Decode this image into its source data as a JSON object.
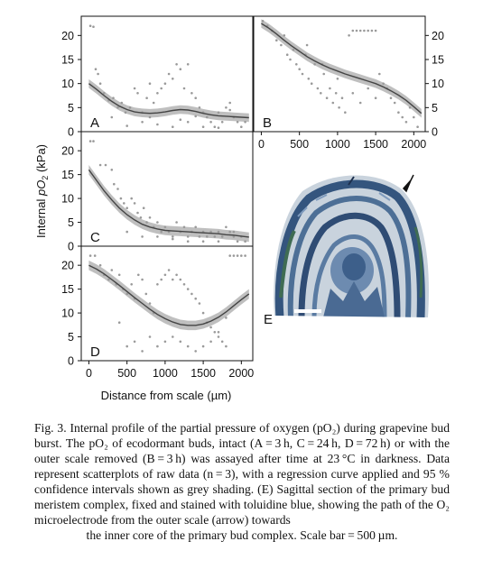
{
  "figure": {
    "y_axis_title_pre": "Internal ",
    "y_axis_title_var": "pO",
    "y_axis_title_sub": "2",
    "y_axis_title_post": " (kPa)",
    "x_axis_title": "Distance from scale (µm)",
    "panel_e_label": "E"
  },
  "caption": {
    "text": "Fig. 3. Internal profile of the partial pressure of oxygen (pO₂) during grapevine bud burst. The pO₂ of ecodormant buds, intact (A = 3 h, C = 24 h, D = 72 h) or with the outer scale removed (B = 3 h) was assayed after time at 23 °C in darkness. Data represent scatterplots of raw data (n = 3), with a regression curve applied and 95 % confidence intervals shown as grey shading. (E) Sagittal section of the primary bud meristem complex, fixed and stained with toluidine blue, showing the path of the O₂ microelectrode from the outer scale (arrow) towards",
    "last_line": "the inner core of the primary bud complex. Scale bar = 500 µm."
  },
  "chart_data": [
    {
      "type": "scatter",
      "panel": "A",
      "xlim": [
        -100,
        2150
      ],
      "ylim": [
        0,
        24
      ],
      "yticks": [
        "0",
        "5",
        "10",
        "15",
        "20"
      ],
      "ytick_values": [
        0,
        5,
        10,
        15,
        20
      ],
      "ytick_side": "left",
      "xticks": [],
      "fit": {
        "x": [
          0,
          100,
          200,
          300,
          400,
          500,
          600,
          700,
          800,
          900,
          1000,
          1100,
          1200,
          1300,
          1400,
          1500,
          1600,
          1700,
          1800,
          1900,
          2000,
          2100
        ],
        "y": [
          10,
          8.8,
          7.5,
          6.3,
          5.3,
          4.6,
          4.1,
          3.9,
          3.8,
          3.9,
          4.1,
          4.4,
          4.6,
          4.5,
          4.2,
          3.8,
          3.5,
          3.3,
          3.2,
          3.1,
          3.0,
          2.9
        ]
      },
      "ci_halfwidth": 0.9,
      "points": [
        [
          20,
          22
        ],
        [
          60,
          21.8
        ],
        [
          90,
          13
        ],
        [
          120,
          12
        ],
        [
          150,
          10
        ],
        [
          200,
          8
        ],
        [
          260,
          6.5
        ],
        [
          320,
          7
        ],
        [
          380,
          5
        ],
        [
          430,
          6
        ],
        [
          480,
          4
        ],
        [
          540,
          5
        ],
        [
          600,
          9
        ],
        [
          640,
          8
        ],
        [
          700,
          4
        ],
        [
          760,
          7
        ],
        [
          800,
          10
        ],
        [
          850,
          6
        ],
        [
          900,
          8
        ],
        [
          950,
          9
        ],
        [
          1000,
          10
        ],
        [
          1050,
          12
        ],
        [
          1100,
          11
        ],
        [
          1150,
          14
        ],
        [
          1200,
          13
        ],
        [
          1250,
          9
        ],
        [
          1300,
          14
        ],
        [
          1350,
          8
        ],
        [
          1400,
          7
        ],
        [
          1450,
          5
        ],
        [
          1500,
          4
        ],
        [
          1550,
          3
        ],
        [
          1600,
          2
        ],
        [
          1650,
          1
        ],
        [
          1700,
          0.8
        ],
        [
          1750,
          2
        ],
        [
          1800,
          5
        ],
        [
          1850,
          6
        ],
        [
          1900,
          3
        ],
        [
          1950,
          2
        ],
        [
          2000,
          1
        ],
        [
          2050,
          2
        ],
        [
          500,
          1.2
        ],
        [
          700,
          2
        ],
        [
          900,
          1.5
        ],
        [
          1100,
          1
        ],
        [
          1300,
          2
        ],
        [
          1500,
          1
        ],
        [
          300,
          3
        ],
        [
          1200,
          2.5
        ],
        [
          800,
          3
        ],
        [
          1400,
          3.2
        ],
        [
          1700,
          4
        ],
        [
          1850,
          4.5
        ]
      ]
    },
    {
      "type": "scatter",
      "panel": "B",
      "xlim": [
        -100,
        2150
      ],
      "ylim": [
        0,
        24
      ],
      "yticks": [
        "0",
        "5",
        "10",
        "15",
        "20"
      ],
      "ytick_values": [
        0,
        5,
        10,
        15,
        20
      ],
      "ytick_side": "right",
      "xticks": [
        "0",
        "500",
        "1000",
        "1500",
        "2000"
      ],
      "xtick_values": [
        0,
        500,
        1000,
        1500,
        2000
      ],
      "fit": {
        "x": [
          0,
          100,
          200,
          300,
          400,
          500,
          600,
          700,
          800,
          900,
          1000,
          1100,
          1200,
          1300,
          1400,
          1500,
          1600,
          1700,
          1800,
          1900,
          2000,
          2100
        ],
        "y": [
          22.5,
          21.5,
          20.3,
          19.0,
          17.8,
          16.7,
          15.6,
          14.7,
          13.9,
          13.2,
          12.6,
          12.0,
          11.5,
          11.0,
          10.5,
          10.0,
          9.3,
          8.5,
          7.6,
          6.5,
          5.2,
          3.8
        ]
      },
      "ci_halfwidth": 0.9,
      "points": [
        [
          20,
          23
        ],
        [
          80,
          22
        ],
        [
          140,
          21
        ],
        [
          200,
          19
        ],
        [
          260,
          18
        ],
        [
          300,
          20
        ],
        [
          340,
          16
        ],
        [
          380,
          15
        ],
        [
          420,
          17
        ],
        [
          460,
          14
        ],
        [
          500,
          13
        ],
        [
          540,
          12
        ],
        [
          580,
          16
        ],
        [
          620,
          11
        ],
        [
          660,
          10
        ],
        [
          700,
          14
        ],
        [
          740,
          9
        ],
        [
          780,
          8
        ],
        [
          820,
          12
        ],
        [
          860,
          7
        ],
        [
          900,
          9
        ],
        [
          940,
          6
        ],
        [
          980,
          8
        ],
        [
          1020,
          5
        ],
        [
          1060,
          7
        ],
        [
          1100,
          4
        ],
        [
          1150,
          20
        ],
        [
          1200,
          21
        ],
        [
          1250,
          21
        ],
        [
          1300,
          21
        ],
        [
          1350,
          21
        ],
        [
          1400,
          21
        ],
        [
          1450,
          21
        ],
        [
          1500,
          21
        ],
        [
          1550,
          12
        ],
        [
          1600,
          10
        ],
        [
          1650,
          9
        ],
        [
          1700,
          7
        ],
        [
          1750,
          6
        ],
        [
          1800,
          4
        ],
        [
          1850,
          3
        ],
        [
          1900,
          2
        ],
        [
          1950,
          5
        ],
        [
          2000,
          3
        ],
        [
          2050,
          1
        ],
        [
          1200,
          8
        ],
        [
          1300,
          6
        ],
        [
          1400,
          9
        ],
        [
          1500,
          7
        ],
        [
          1000,
          11
        ],
        [
          800,
          14
        ],
        [
          600,
          18
        ]
      ]
    },
    {
      "type": "scatter",
      "panel": "C",
      "xlim": [
        -100,
        2150
      ],
      "ylim": [
        0,
        24
      ],
      "yticks": [
        "0",
        "5",
        "10",
        "15",
        "20"
      ],
      "ytick_values": [
        0,
        5,
        10,
        15,
        20
      ],
      "ytick_side": "left",
      "xticks": [],
      "fit": {
        "x": [
          0,
          100,
          200,
          300,
          400,
          500,
          600,
          700,
          800,
          900,
          1000,
          1100,
          1200,
          1300,
          1400,
          1500,
          1600,
          1700,
          1800,
          1900,
          2000,
          2100
        ],
        "y": [
          16,
          13.8,
          11.6,
          9.7,
          8.0,
          6.6,
          5.5,
          4.6,
          4.0,
          3.6,
          3.3,
          3.2,
          3.1,
          3.0,
          2.9,
          2.8,
          2.7,
          2.6,
          2.4,
          2.3,
          2.1,
          1.9
        ]
      },
      "ci_halfwidth": 1.0,
      "points": [
        [
          20,
          22
        ],
        [
          60,
          22
        ],
        [
          150,
          17
        ],
        [
          220,
          17
        ],
        [
          300,
          16
        ],
        [
          330,
          13
        ],
        [
          380,
          12
        ],
        [
          420,
          10
        ],
        [
          460,
          9
        ],
        [
          500,
          8
        ],
        [
          560,
          10
        ],
        [
          600,
          9
        ],
        [
          640,
          7
        ],
        [
          680,
          6
        ],
        [
          720,
          8
        ],
        [
          760,
          5
        ],
        [
          800,
          6
        ],
        [
          850,
          4
        ],
        [
          900,
          5
        ],
        [
          950,
          3
        ],
        [
          1000,
          4
        ],
        [
          1050,
          3
        ],
        [
          1100,
          2
        ],
        [
          1150,
          5
        ],
        [
          1200,
          3
        ],
        [
          1250,
          4
        ],
        [
          1300,
          2
        ],
        [
          1350,
          3
        ],
        [
          1400,
          4
        ],
        [
          1450,
          2
        ],
        [
          1500,
          3
        ],
        [
          1550,
          2
        ],
        [
          1600,
          3
        ],
        [
          1650,
          2
        ],
        [
          1700,
          1
        ],
        [
          1750,
          2
        ],
        [
          1800,
          4
        ],
        [
          1850,
          3
        ],
        [
          1900,
          2
        ],
        [
          1950,
          1
        ],
        [
          2000,
          2
        ],
        [
          2050,
          1
        ],
        [
          500,
          3
        ],
        [
          700,
          2
        ],
        [
          900,
          2
        ],
        [
          1100,
          1.5
        ],
        [
          1300,
          1
        ],
        [
          1500,
          1
        ],
        [
          1700,
          3
        ],
        [
          1900,
          3
        ]
      ]
    },
    {
      "type": "scatter",
      "panel": "D",
      "xlim": [
        -100,
        2150
      ],
      "ylim": [
        0,
        24
      ],
      "yticks": [
        "0",
        "5",
        "10",
        "15",
        "20"
      ],
      "ytick_values": [
        0,
        5,
        10,
        15,
        20
      ],
      "ytick_side": "left",
      "xticks": [
        "0",
        "500",
        "1000",
        "1500",
        "2000"
      ],
      "xtick_values": [
        0,
        500,
        1000,
        1500,
        2000
      ],
      "fit": {
        "x": [
          0,
          100,
          200,
          300,
          400,
          500,
          600,
          700,
          800,
          900,
          1000,
          1100,
          1200,
          1300,
          1400,
          1500,
          1600,
          1700,
          1800,
          1900,
          2000,
          2100
        ],
        "y": [
          20,
          19.2,
          18.2,
          17.0,
          15.8,
          14.5,
          13.2,
          12.0,
          10.8,
          9.7,
          8.8,
          8.1,
          7.6,
          7.4,
          7.4,
          7.7,
          8.3,
          9.1,
          10.2,
          11.5,
          12.8,
          14.0
        ]
      },
      "ci_halfwidth": 1.0,
      "points": [
        [
          20,
          22
        ],
        [
          80,
          22
        ],
        [
          150,
          20
        ],
        [
          200,
          18
        ],
        [
          260,
          17
        ],
        [
          300,
          19
        ],
        [
          360,
          16
        ],
        [
          400,
          18
        ],
        [
          450,
          15
        ],
        [
          500,
          14
        ],
        [
          560,
          16
        ],
        [
          600,
          13
        ],
        [
          650,
          18
        ],
        [
          700,
          17
        ],
        [
          750,
          14
        ],
        [
          800,
          12
        ],
        [
          850,
          10
        ],
        [
          900,
          16
        ],
        [
          950,
          17
        ],
        [
          1000,
          18
        ],
        [
          1050,
          19
        ],
        [
          1100,
          17
        ],
        [
          1150,
          18
        ],
        [
          1200,
          17
        ],
        [
          1250,
          16
        ],
        [
          1300,
          15
        ],
        [
          1350,
          14
        ],
        [
          1400,
          13
        ],
        [
          1450,
          12
        ],
        [
          1500,
          10
        ],
        [
          1550,
          8
        ],
        [
          1600,
          7
        ],
        [
          1650,
          6
        ],
        [
          1700,
          5
        ],
        [
          1750,
          4
        ],
        [
          1800,
          3
        ],
        [
          1850,
          22
        ],
        [
          1900,
          22
        ],
        [
          1950,
          22
        ],
        [
          2000,
          22
        ],
        [
          2050,
          22
        ],
        [
          400,
          8
        ],
        [
          500,
          3
        ],
        [
          600,
          4
        ],
        [
          700,
          2
        ],
        [
          800,
          5
        ],
        [
          900,
          3
        ],
        [
          1000,
          4
        ],
        [
          1100,
          5
        ],
        [
          1200,
          4
        ],
        [
          1300,
          3
        ],
        [
          1400,
          2
        ],
        [
          1500,
          3
        ],
        [
          1600,
          4
        ],
        [
          1700,
          6
        ],
        [
          1800,
          9
        ]
      ]
    }
  ]
}
